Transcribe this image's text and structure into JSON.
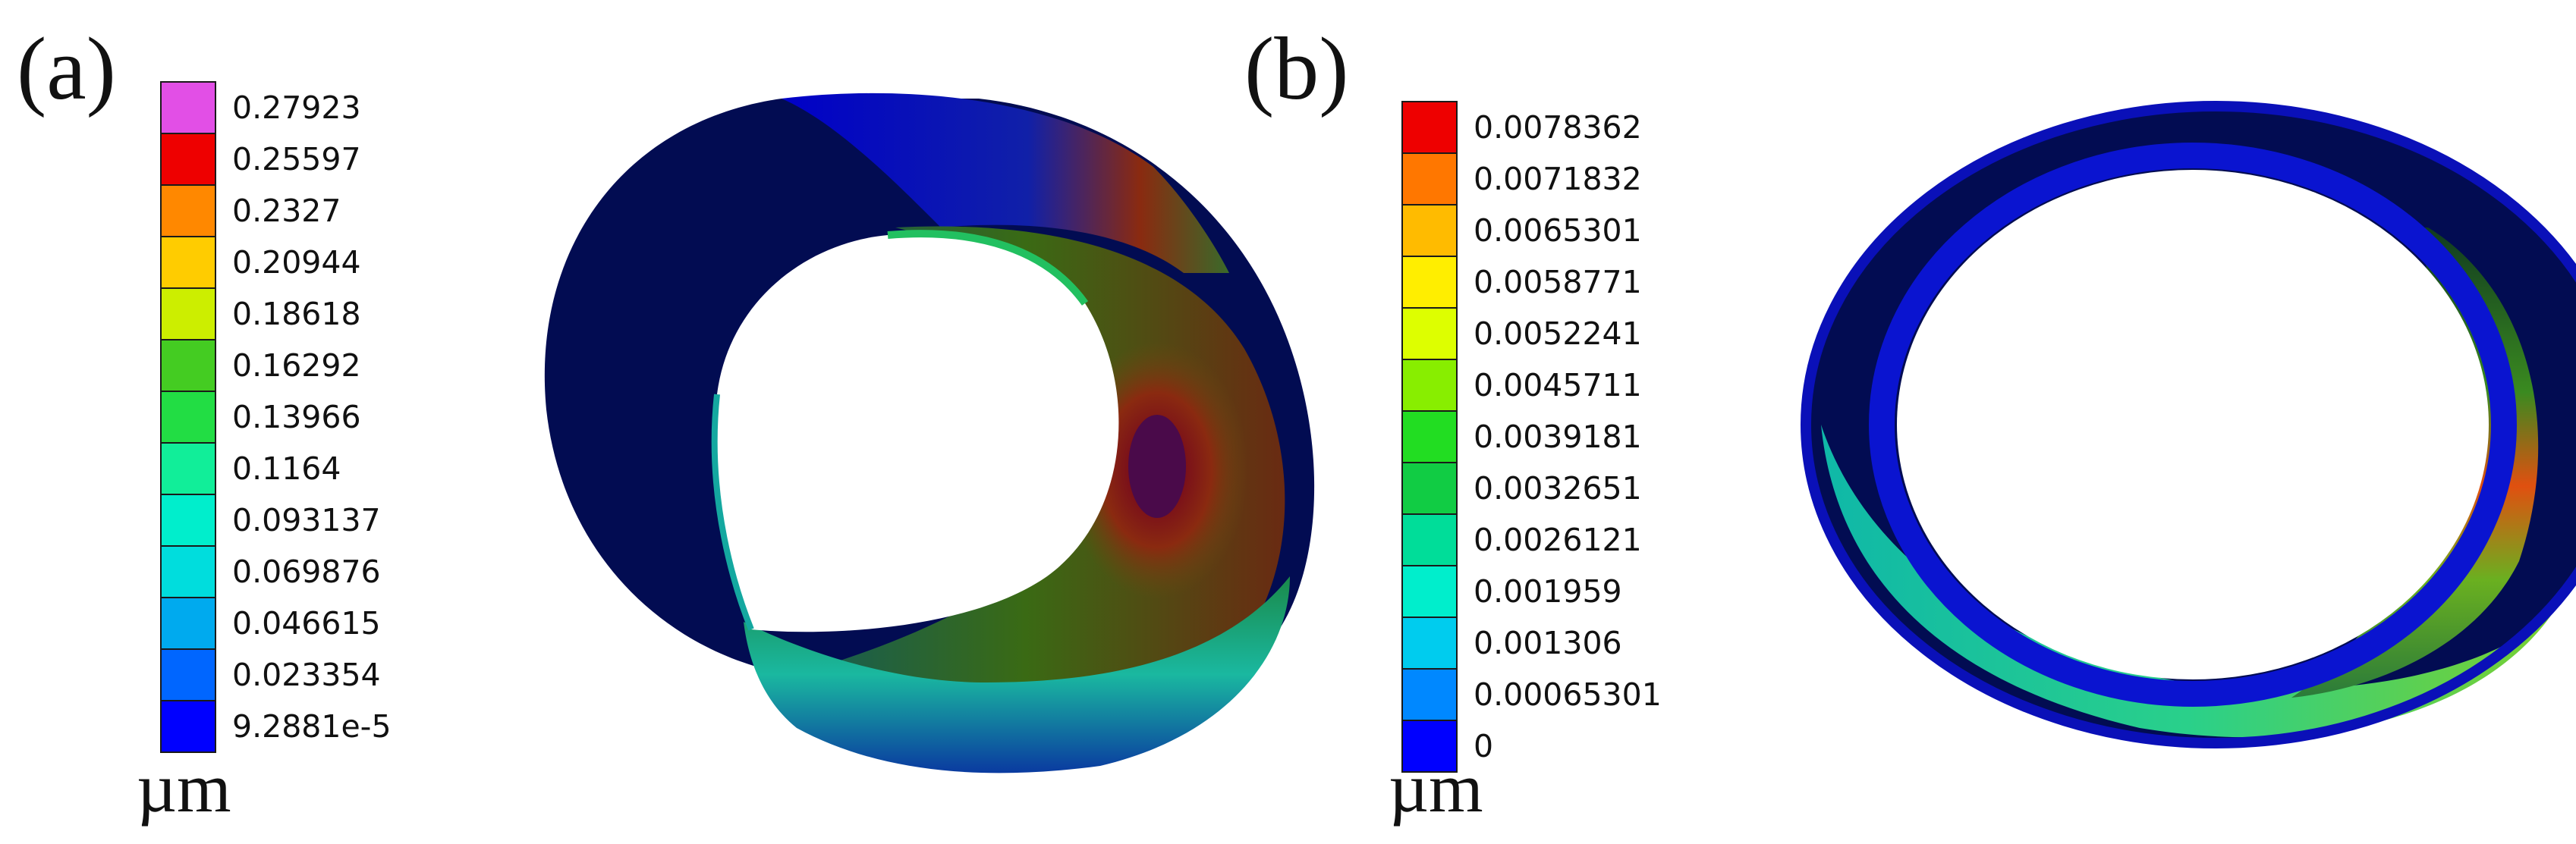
{
  "panels": [
    {
      "letter": "(a)",
      "unit": "µm",
      "legend": {
        "ticks": [
          "0.27923",
          "0.25597",
          "0.2327",
          "0.20944",
          "0.18618",
          "0.16292",
          "0.13966",
          "0.1164",
          "0.093137",
          "0.069876",
          "0.046615",
          "0.023354",
          "9.2881e-5"
        ],
        "colors": [
          "#e24fe6",
          "#ee0000",
          "#ff8800",
          "#ffcc00",
          "#ccee00",
          "#44cc22",
          "#22dd44",
          "#11ee99",
          "#00eecc",
          "#00dddd",
          "#00aaee",
          "#0066ff",
          "#0000ff"
        ]
      }
    },
    {
      "letter": "(b)",
      "unit": "µm",
      "legend": {
        "ticks": [
          "0.0078362",
          "0.0071832",
          "0.0065301",
          "0.0058771",
          "0.0052241",
          "0.0045711",
          "0.0039181",
          "0.0032651",
          "0.0026121",
          "0.001959",
          "0.001306",
          "0.00065301",
          "0"
        ],
        "colors": [
          "#ee0000",
          "#ff7700",
          "#ffbb00",
          "#ffee00",
          "#ddff00",
          "#88ee00",
          "#22dd22",
          "#11cc44",
          "#00dd99",
          "#00eecc",
          "#00ccee",
          "#0088ff",
          "#0000ff"
        ]
      }
    }
  ]
}
